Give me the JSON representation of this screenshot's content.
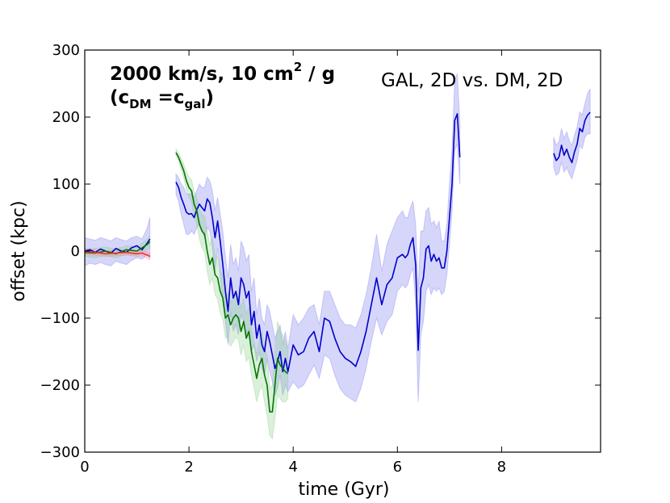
{
  "chart_data": {
    "type": "line",
    "title": "",
    "xlabel": "time (Gyr)",
    "ylabel": "offset (kpc)",
    "xlim": [
      0,
      9.9
    ],
    "ylim": [
      -300,
      300
    ],
    "xticks": [
      0,
      2,
      4,
      6,
      8
    ],
    "yticks": [
      300,
      200,
      100,
      0,
      -100,
      -200,
      -300
    ],
    "xtick_labels": [
      "0",
      "2",
      "4",
      "6",
      "8"
    ],
    "ytick_labels": [
      "300",
      "200",
      "100",
      "0",
      "−100",
      "−200",
      "−300"
    ],
    "grid": false,
    "annotations": {
      "line1": "2000 km/s, 10 cm",
      "line1_sup": "2",
      "line1_end": " / g",
      "line2_open": "(c",
      "line2_sub1": "DM",
      "line2_mid": " =c",
      "line2_sub2": "gal",
      "line2_close": ")",
      "right": "GAL, 2D vs. DM, 2D"
    },
    "series": [
      {
        "name": "early-blue",
        "color": "#0000cc",
        "band_color": "#7777ee",
        "x": [
          0.0,
          0.1,
          0.2,
          0.3,
          0.4,
          0.5,
          0.6,
          0.7,
          0.8,
          0.9,
          1.0,
          1.1,
          1.2,
          1.25
        ],
        "y": [
          0,
          2,
          -2,
          3,
          0,
          -3,
          4,
          0,
          -2,
          5,
          8,
          2,
          12,
          18
        ],
        "lo": [
          -22,
          -18,
          -20,
          -17,
          -20,
          -22,
          -15,
          -18,
          -20,
          -14,
          -10,
          -12,
          -5,
          -10
        ],
        "hi": [
          20,
          18,
          16,
          20,
          18,
          15,
          20,
          17,
          15,
          20,
          22,
          18,
          35,
          50
        ]
      },
      {
        "name": "early-green",
        "color": "#007700",
        "band_color": "#88cc88",
        "x": [
          0.0,
          0.2,
          0.4,
          0.6,
          0.8,
          1.0,
          1.1,
          1.2,
          1.25
        ],
        "y": [
          -2,
          -3,
          0,
          -4,
          2,
          0,
          5,
          10,
          14
        ],
        "lo": [
          -8,
          -10,
          -7,
          -10,
          -5,
          -6,
          -2,
          2,
          5
        ],
        "hi": [
          4,
          4,
          6,
          3,
          8,
          6,
          12,
          18,
          22
        ]
      },
      {
        "name": "early-red",
        "color": "#ee3333",
        "band_color": "#ff8888",
        "x": [
          0.0,
          0.2,
          0.4,
          0.6,
          0.8,
          1.0,
          1.1,
          1.2,
          1.25
        ],
        "y": [
          -1,
          -2,
          -4,
          -3,
          -2,
          -4,
          -3,
          -6,
          -8
        ],
        "lo": [
          -5,
          -6,
          -8,
          -7,
          -6,
          -8,
          -7,
          -11,
          -13
        ],
        "hi": [
          3,
          2,
          0,
          1,
          2,
          0,
          1,
          -1,
          -3
        ]
      },
      {
        "name": "blue",
        "color": "#0000cc",
        "band_color": "#7777ee",
        "x": [
          1.75,
          1.8,
          1.85,
          1.9,
          1.95,
          2.0,
          2.05,
          2.1,
          2.15,
          2.2,
          2.25,
          2.3,
          2.35,
          2.4,
          2.45,
          2.5,
          2.55,
          2.6,
          2.65,
          2.7,
          2.75,
          2.8,
          2.85,
          2.9,
          2.95,
          3.0,
          3.05,
          3.1,
          3.15,
          3.2,
          3.25,
          3.3,
          3.35,
          3.4,
          3.45,
          3.5,
          3.55,
          3.6,
          3.65,
          3.7,
          3.75,
          3.8,
          3.85,
          3.9,
          4.0,
          4.1,
          4.2,
          4.3,
          4.4,
          4.5,
          4.6,
          4.7,
          4.8,
          4.9,
          5.0,
          5.1,
          5.2,
          5.3,
          5.4,
          5.5,
          5.6,
          5.7,
          5.8,
          5.9,
          6.0,
          6.1,
          6.15,
          6.2,
          6.25,
          6.3,
          6.35,
          6.4,
          6.45,
          6.5,
          6.55,
          6.6,
          6.65,
          6.7,
          6.75,
          6.8,
          6.85,
          6.9,
          6.95,
          7.0,
          7.05,
          7.1,
          7.15,
          7.2
        ],
        "y": [
          103,
          95,
          80,
          70,
          58,
          55,
          56,
          50,
          62,
          70,
          65,
          60,
          78,
          72,
          50,
          20,
          45,
          15,
          -20,
          -60,
          -90,
          -40,
          -70,
          -60,
          -80,
          -40,
          -50,
          -70,
          -60,
          -110,
          -90,
          -130,
          -110,
          -140,
          -150,
          -120,
          -135,
          -155,
          -175,
          -165,
          -150,
          -180,
          -160,
          -180,
          -140,
          -155,
          -150,
          -130,
          -120,
          -150,
          -100,
          -105,
          -130,
          -150,
          -160,
          -165,
          -172,
          -150,
          -120,
          -80,
          -40,
          -80,
          -50,
          -40,
          -10,
          -5,
          -10,
          -5,
          10,
          20,
          -20,
          -148,
          -55,
          -40,
          3,
          8,
          -15,
          -5,
          -15,
          -10,
          -25,
          -25,
          0,
          50,
          100,
          195,
          205,
          140
        ],
        "lo": [
          85,
          75,
          55,
          40,
          25,
          25,
          30,
          25,
          35,
          40,
          30,
          20,
          35,
          30,
          5,
          -30,
          5,
          -35,
          -75,
          -105,
          -140,
          -90,
          -120,
          -110,
          -125,
          -95,
          -105,
          -125,
          -115,
          -150,
          -140,
          -165,
          -150,
          -175,
          -185,
          -160,
          -180,
          -195,
          -215,
          -205,
          -185,
          -215,
          -200,
          -210,
          -195,
          -205,
          -200,
          -185,
          -170,
          -190,
          -155,
          -160,
          -185,
          -205,
          -215,
          -220,
          -225,
          -205,
          -175,
          -135,
          -100,
          -125,
          -105,
          -95,
          -60,
          -50,
          -55,
          -50,
          -35,
          -25,
          -80,
          -225,
          -125,
          -105,
          -60,
          -50,
          -65,
          -55,
          -60,
          -55,
          -65,
          -60,
          -35,
          10,
          60,
          150,
          160,
          100
        ],
        "hi": [
          115,
          110,
          100,
          95,
          85,
          85,
          85,
          80,
          90,
          100,
          95,
          95,
          110,
          105,
          90,
          60,
          80,
          55,
          30,
          -10,
          -40,
          10,
          -20,
          -10,
          -30,
          15,
          5,
          -15,
          -5,
          -60,
          -40,
          -95,
          -70,
          -100,
          -110,
          -80,
          -90,
          -110,
          -130,
          -120,
          -110,
          -140,
          -120,
          -145,
          -95,
          -110,
          -100,
          -85,
          -80,
          -110,
          -60,
          -60,
          -80,
          -100,
          -110,
          -110,
          -115,
          -95,
          -65,
          -25,
          25,
          -30,
          10,
          30,
          50,
          60,
          50,
          50,
          65,
          75,
          40,
          -60,
          30,
          30,
          60,
          65,
          40,
          45,
          35,
          45,
          15,
          15,
          40,
          100,
          150,
          255,
          265,
          190
        ]
      },
      {
        "name": "green",
        "color": "#007700",
        "band_color": "#88cc88",
        "x": [
          1.75,
          1.8,
          1.85,
          1.9,
          1.95,
          2.0,
          2.05,
          2.1,
          2.15,
          2.2,
          2.25,
          2.3,
          2.35,
          2.4,
          2.45,
          2.5,
          2.55,
          2.6,
          2.65,
          2.7,
          2.75,
          2.8,
          2.85,
          2.9,
          2.95,
          3.0,
          3.05,
          3.1,
          3.15,
          3.2,
          3.25,
          3.3,
          3.35,
          3.4,
          3.45,
          3.5,
          3.55,
          3.6,
          3.65,
          3.7,
          3.75,
          3.8,
          3.85,
          3.9
        ],
        "y": [
          147,
          140,
          130,
          120,
          105,
          95,
          90,
          70,
          60,
          40,
          30,
          25,
          0,
          -20,
          -10,
          -35,
          -40,
          -60,
          -70,
          -100,
          -95,
          -110,
          -100,
          -95,
          -100,
          -120,
          -105,
          -130,
          -120,
          -150,
          -170,
          -190,
          -170,
          -160,
          -185,
          -200,
          -240,
          -240,
          -200,
          -160,
          -170,
          -175,
          -180,
          -183
        ],
        "lo": [
          143,
          135,
          122,
          110,
          92,
          80,
          73,
          52,
          40,
          18,
          5,
          -2,
          -30,
          -50,
          -40,
          -65,
          -72,
          -92,
          -102,
          -130,
          -128,
          -142,
          -135,
          -128,
          -133,
          -155,
          -140,
          -165,
          -158,
          -185,
          -205,
          -225,
          -210,
          -200,
          -225,
          -245,
          -275,
          -280,
          -250,
          -215,
          -220,
          -225,
          -225,
          -220
        ],
        "hi": [
          152,
          146,
          138,
          130,
          118,
          110,
          106,
          88,
          80,
          62,
          55,
          52,
          30,
          10,
          20,
          -5,
          -8,
          -28,
          -38,
          -70,
          -62,
          -78,
          -65,
          -62,
          -67,
          -85,
          -70,
          -95,
          -82,
          -115,
          -135,
          -155,
          -130,
          -120,
          -145,
          -155,
          -205,
          -200,
          -150,
          -105,
          -120,
          -125,
          -135,
          -145
        ]
      },
      {
        "name": "late-blue",
        "color": "#0000cc",
        "band_color": "#7777ee",
        "x": [
          9.0,
          9.05,
          9.1,
          9.15,
          9.2,
          9.25,
          9.3,
          9.35,
          9.4,
          9.45,
          9.5,
          9.55,
          9.6,
          9.65,
          9.7
        ],
        "y": [
          146,
          135,
          140,
          158,
          143,
          152,
          140,
          132,
          148,
          160,
          183,
          178,
          195,
          203,
          207
        ],
        "lo": [
          125,
          113,
          117,
          133,
          118,
          125,
          115,
          108,
          122,
          135,
          158,
          153,
          170,
          175,
          175
        ],
        "hi": [
          170,
          158,
          163,
          183,
          168,
          178,
          165,
          158,
          173,
          185,
          208,
          203,
          220,
          235,
          242
        ]
      }
    ]
  }
}
